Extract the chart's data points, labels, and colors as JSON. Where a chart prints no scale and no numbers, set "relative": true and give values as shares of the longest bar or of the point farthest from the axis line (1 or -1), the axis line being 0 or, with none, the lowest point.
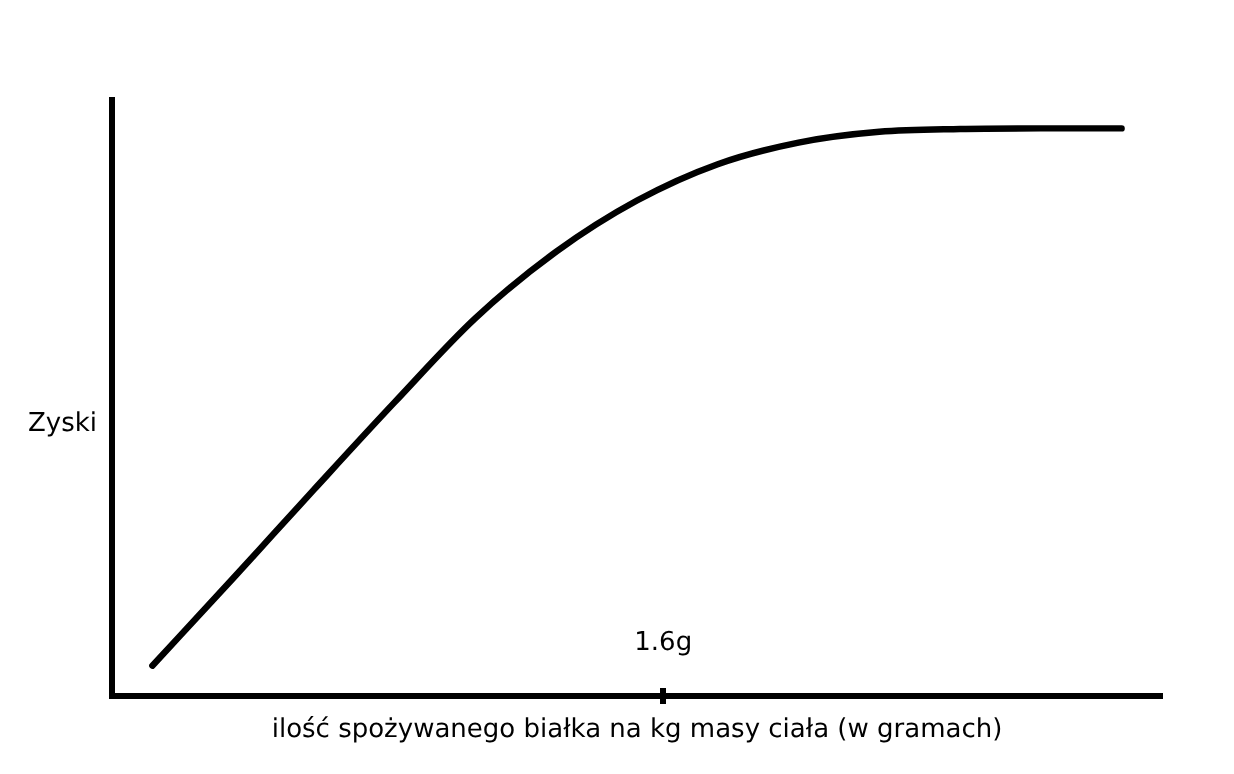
{
  "chart_data": {
    "type": "line",
    "relative": true,
    "xlabel": "ilość spożywanego białka na kg masy ciała (w gramach)",
    "ylabel": "Zyski",
    "categories": [
      null,
      null,
      null,
      null,
      null,
      null,
      null,
      null,
      null,
      null,
      null,
      null,
      null
    ],
    "series": [
      {
        "color": "#000000",
        "values": [
          0.054,
          0.208,
          0.364,
          0.518,
          0.666,
          0.783,
          0.873,
          0.937,
          0.975,
          0.994,
          0.999,
          1,
          1
        ]
      }
    ],
    "annotations": [
      "1.6g"
    ],
    "grid": false,
    "legend": false,
    "marker": "none",
    "line_style": "solid"
  }
}
